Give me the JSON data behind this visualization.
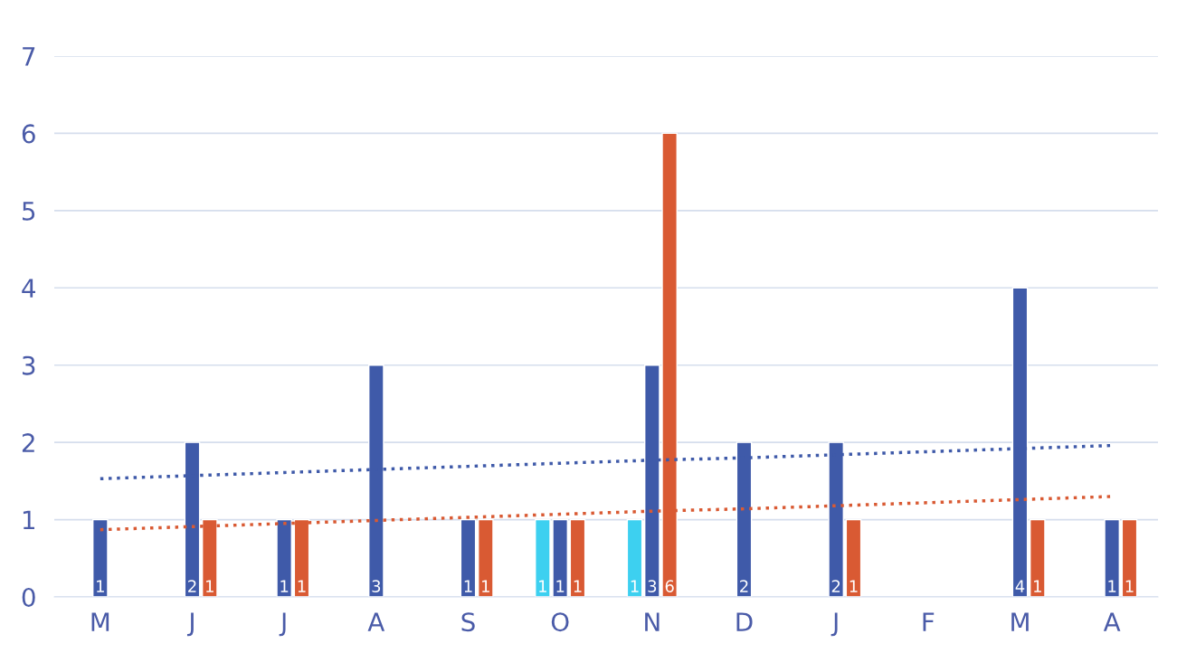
{
  "chart_data": {
    "type": "bar",
    "categories": [
      "M",
      "J",
      "J",
      "A",
      "S",
      "O",
      "N",
      "D",
      "J",
      "F",
      "M",
      "A"
    ],
    "series": [
      {
        "color": "#3dd0f0",
        "values": [
          null,
          null,
          null,
          null,
          null,
          1,
          1,
          null,
          null,
          null,
          null,
          null
        ],
        "value_labels": [
          null,
          null,
          null,
          null,
          null,
          "1",
          "1",
          null,
          null,
          null,
          null,
          null
        ]
      },
      {
        "color": "#3f5aa9",
        "values": [
          1,
          2,
          1,
          3,
          1,
          1,
          3,
          2,
          2,
          null,
          4,
          1
        ],
        "value_labels": [
          "1",
          "2",
          "1",
          "3",
          "1",
          "1",
          "3",
          "2",
          "2",
          null,
          "4",
          "1"
        ]
      },
      {
        "color": "#d95a33",
        "values": [
          null,
          1,
          1,
          null,
          1,
          1,
          6,
          null,
          1,
          null,
          1,
          1
        ],
        "value_labels": [
          null,
          "1",
          "1",
          null,
          "1",
          "1",
          "6",
          null,
          "1",
          null,
          "1",
          "1"
        ]
      },
      {
        "type": "line",
        "line_style": "dotted",
        "color": "#3f5aa9",
        "values": [
          1.53,
          1.57,
          1.61,
          1.65,
          1.69,
          1.73,
          1.77,
          1.8,
          1.84,
          1.88,
          1.92,
          1.96
        ]
      },
      {
        "type": "line",
        "line_style": "dotted",
        "color": "#d95a33",
        "values": [
          0.87,
          0.91,
          0.95,
          0.99,
          1.03,
          1.07,
          1.11,
          1.14,
          1.18,
          1.22,
          1.26,
          1.3
        ]
      }
    ],
    "ylim": [
      0,
      7
    ],
    "yticks": [
      0,
      1,
      2,
      3,
      4,
      5,
      6,
      7
    ],
    "grid": "y"
  }
}
